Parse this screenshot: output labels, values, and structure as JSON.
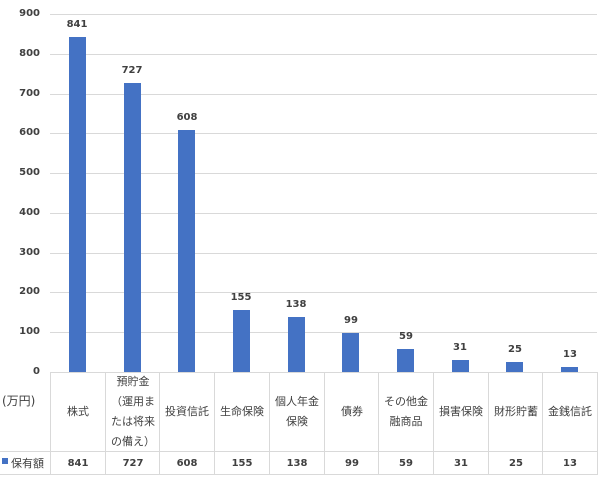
{
  "chart_data": {
    "type": "bar",
    "title": "",
    "xlabel": "",
    "ylabel": "(万円)",
    "ylim": [
      0,
      900
    ],
    "yticks": [
      0,
      100,
      200,
      300,
      400,
      500,
      600,
      700,
      800,
      900
    ],
    "grid": true,
    "legend_position": "data-table",
    "categories": [
      "株式",
      "預貯金（運用または将来の備え）",
      "投資信託",
      "生命保険",
      "個人年金保険",
      "債券",
      "その他金融商品",
      "損害保険",
      "財形貯蓄",
      "金銭信託"
    ],
    "category_display": [
      "株式",
      "預貯金\n（運用ま\nたは将来\nの備え）",
      "投資信託",
      "生命保険",
      "個人年金\n保険",
      "債券",
      "その他金\n融商品",
      "損害保険",
      "財形貯蓄",
      "金銭信託"
    ],
    "series": [
      {
        "name": "保有額",
        "color": "#4472c4",
        "values": [
          841,
          727,
          608,
          155,
          138,
          99,
          59,
          31,
          25,
          13
        ]
      }
    ],
    "data_labels": true,
    "data_table": true
  },
  "axis": {
    "unit_label": "(万円)"
  },
  "legend": {
    "series_name": "保有額"
  }
}
